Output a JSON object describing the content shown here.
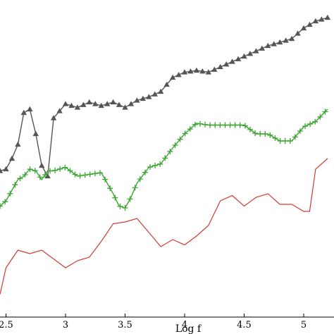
{
  "chart_data": {
    "type": "line",
    "xlabel": "Log f",
    "ylabel": "",
    "title": "",
    "xlim": [
      2.45,
      5.2
    ],
    "ylim": [
      0,
      1
    ],
    "x_ticks": [
      2.5,
      3,
      3.5,
      4,
      4.5,
      5
    ],
    "x_tick_labels": [
      "2.5",
      "3",
      "3.5",
      "4",
      "4.5",
      "5"
    ],
    "grid": false,
    "legend": "none",
    "series": [
      {
        "marker": "triangle",
        "color": "#555555",
        "x": [
          2.45,
          2.5,
          2.55,
          2.6,
          2.65,
          2.7,
          2.75,
          2.8,
          2.85,
          2.9,
          3.0,
          3.1,
          3.2,
          3.3,
          3.4,
          3.5,
          3.6,
          3.7,
          3.8,
          3.9,
          4.0,
          4.1,
          4.2,
          4.3,
          4.4,
          4.5,
          4.6,
          4.7,
          4.8,
          4.9,
          5.0,
          5.1,
          5.2
        ],
        "y": [
          0.055,
          0.056,
          0.062,
          0.07,
          0.088,
          0.09,
          0.076,
          0.058,
          0.052,
          0.085,
          0.093,
          0.091,
          0.094,
          0.092,
          0.094,
          0.091,
          0.095,
          0.097,
          0.1,
          0.108,
          0.111,
          0.112,
          0.111,
          0.114,
          0.117,
          0.12,
          0.123,
          0.126,
          0.128,
          0.13,
          0.136,
          0.14,
          0.142
        ]
      },
      {
        "marker": "plus",
        "color": "#3aa530",
        "x": [
          2.45,
          2.5,
          2.55,
          2.6,
          2.65,
          2.7,
          2.75,
          2.8,
          2.85,
          2.9,
          3.0,
          3.1,
          3.2,
          3.3,
          3.4,
          3.45,
          3.5,
          3.55,
          3.6,
          3.7,
          3.8,
          3.9,
          4.0,
          4.1,
          4.2,
          4.3,
          4.4,
          4.5,
          4.6,
          4.7,
          4.8,
          4.9,
          5.0,
          5.1,
          5.2
        ],
        "y": [
          0.035,
          0.038,
          0.044,
          0.05,
          0.052,
          0.056,
          0.055,
          0.05,
          0.055,
          0.055,
          0.057,
          0.052,
          0.053,
          0.054,
          0.042,
          0.035,
          0.034,
          0.04,
          0.048,
          0.057,
          0.059,
          0.068,
          0.076,
          0.082,
          0.081,
          0.081,
          0.081,
          0.081,
          0.076,
          0.076,
          0.072,
          0.072,
          0.08,
          0.083,
          0.09
        ]
      },
      {
        "marker": "none",
        "color": "#d23a36",
        "x": [
          2.45,
          2.5,
          2.55,
          2.6,
          2.7,
          2.8,
          2.9,
          3.0,
          3.1,
          3.2,
          3.3,
          3.4,
          3.5,
          3.6,
          3.7,
          3.8,
          3.9,
          4.0,
          4.1,
          4.2,
          4.3,
          4.4,
          4.5,
          4.6,
          4.7,
          4.8,
          4.9,
          5.0,
          5.05,
          5.1,
          5.2
        ],
        "y": [
          -0.015,
          0.0,
          0.005,
          0.01,
          0.008,
          0.01,
          0.005,
          0.0,
          0.004,
          0.006,
          0.015,
          0.025,
          0.026,
          0.028,
          0.02,
          0.012,
          0.016,
          0.013,
          0.018,
          0.024,
          0.038,
          0.041,
          0.035,
          0.04,
          0.042,
          0.036,
          0.036,
          0.032,
          0.032,
          0.056,
          0.062
        ]
      }
    ]
  }
}
